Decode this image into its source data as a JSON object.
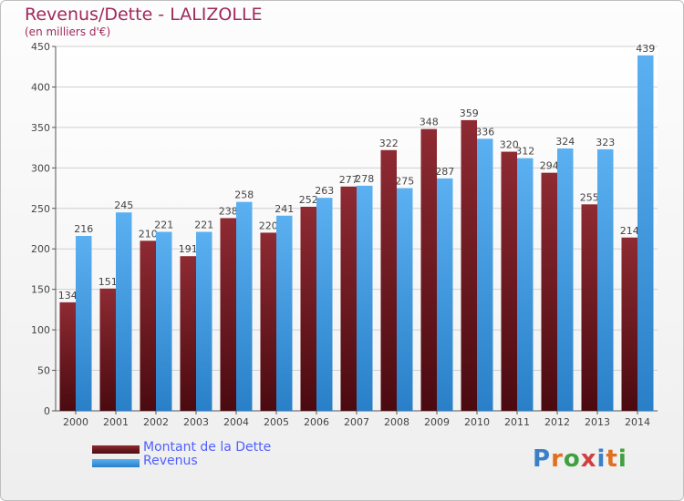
{
  "title": "Revenus/Dette - LALIZOLLE",
  "subtitle": "(en milliers d'€)",
  "legend": {
    "debt_label": "Montant de la Dette",
    "revenue_label": "Revenus"
  },
  "logo": {
    "text": "Proxiti",
    "colors": [
      "#3a80c8",
      "#e07020",
      "#40a040",
      "#d04040"
    ]
  },
  "colors": {
    "debt": "#7a1a22",
    "revenue": "#3b9be0",
    "title": "#a0285a",
    "legend_text": "#5060ff"
  },
  "chart_data": {
    "type": "bar",
    "categories": [
      "2000",
      "2001",
      "2002",
      "2003",
      "2004",
      "2005",
      "2006",
      "2007",
      "2008",
      "2009",
      "2010",
      "2011",
      "2012",
      "2013",
      "2014"
    ],
    "series": [
      {
        "name": "Montant de la Dette",
        "values": [
          134,
          151,
          210,
          191,
          238,
          220,
          252,
          277,
          322,
          348,
          359,
          320,
          294,
          255,
          214
        ]
      },
      {
        "name": "Revenus",
        "values": [
          216,
          245,
          221,
          221,
          258,
          241,
          263,
          278,
          275,
          287,
          336,
          312,
          324,
          323,
          439
        ]
      }
    ],
    "ylim": [
      0,
      450
    ],
    "yticks": [
      0,
      50,
      100,
      150,
      200,
      250,
      300,
      350,
      400,
      450
    ],
    "grid": true,
    "legend_position": "bottom-left"
  }
}
